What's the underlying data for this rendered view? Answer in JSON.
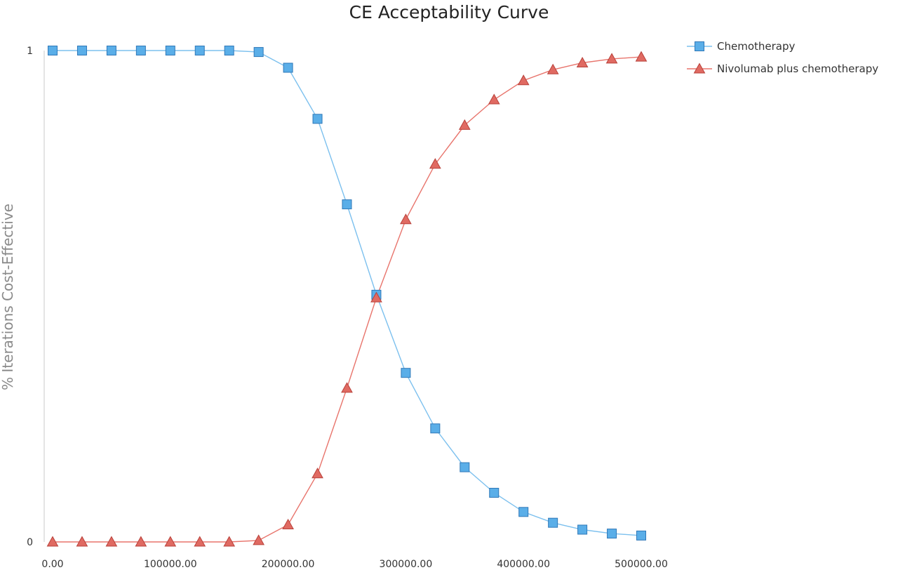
{
  "chart_data": {
    "type": "line",
    "title": "CE Acceptability Curve",
    "xlabel": "",
    "ylabel": "% Iterations Cost-Effective",
    "x": [
      0,
      25000,
      50000,
      75000,
      100000,
      125000,
      150000,
      175000,
      200000,
      225000,
      250000,
      275000,
      300000,
      325000,
      350000,
      375000,
      400000,
      425000,
      450000,
      475000,
      500000
    ],
    "xlim": [
      0,
      500000
    ],
    "ylim": [
      0,
      1
    ],
    "x_ticks": [
      0,
      100000,
      200000,
      300000,
      400000,
      500000
    ],
    "x_tick_labels": [
      "0.00",
      "100000.00",
      "200000.00",
      "300000.00",
      "400000.00",
      "500000.00"
    ],
    "y_ticks": [
      0,
      1
    ],
    "y_tick_labels": [
      "0",
      "1"
    ],
    "grid": false,
    "legend_position": "top-right",
    "series": [
      {
        "name": "Chemotherapy",
        "marker": "square",
        "color": "#5aaee8",
        "line_color": "#7cc0ee",
        "edge_color": "#2f78b8",
        "values": [
          1.0,
          1.0,
          1.0,
          1.0,
          1.0,
          1.0,
          1.0,
          0.997,
          0.965,
          0.861,
          0.687,
          0.503,
          0.344,
          0.231,
          0.152,
          0.1,
          0.061,
          0.039,
          0.025,
          0.017,
          0.013
        ]
      },
      {
        "name": "Nivolumab plus chemotherapy",
        "marker": "triangle",
        "color": "#e06a62",
        "line_color": "#e8746c",
        "edge_color": "#b8413a",
        "values": [
          0.0,
          0.0,
          0.0,
          0.0,
          0.0,
          0.0,
          0.0,
          0.003,
          0.035,
          0.139,
          0.313,
          0.497,
          0.656,
          0.769,
          0.848,
          0.9,
          0.939,
          0.961,
          0.975,
          0.983,
          0.987
        ]
      }
    ]
  }
}
